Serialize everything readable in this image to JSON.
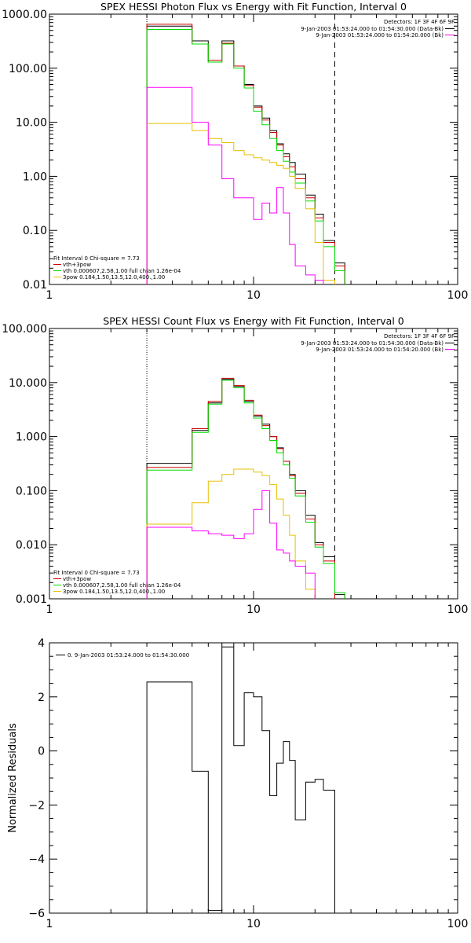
{
  "chart_data": [
    {
      "type": "line",
      "title": "SPEX HESSI Photon Flux vs Energy with Fit Function, Interval 0",
      "xlabel": "",
      "ylabel": "",
      "x_scale": "log",
      "y_scale": "log",
      "xlim": [
        1,
        100
      ],
      "ylim": [
        0.01,
        1000
      ],
      "x_tick_labels": [
        "1",
        "10",
        "100"
      ],
      "y_tick_labels": [
        "1000.00",
        "100.00",
        "10.00",
        "1.00",
        "0.10",
        "0.01"
      ],
      "dotted_vline_x": 3,
      "dashed_vline_x": 25,
      "legend_top": {
        "placement": "top-right",
        "header": "Detectors: 1F 3F 4F 6F 9F",
        "entries": [
          {
            "text": "9-Jan-2003 01:53:24.000 to 01:54:30.000 (Data-Bk)",
            "color": "#000000"
          },
          {
            "text": "9-Jan-2003 01:53:24.000 to 01:54:20.000 (Bk)",
            "color": "#ff00ff"
          }
        ]
      },
      "legend_bottom": {
        "placement": "bottom-left",
        "header": "Fit Interval 0   Chi-square = 7.73",
        "entries": [
          {
            "text": "vth+3pow",
            "color": "#cc0000"
          },
          {
            "text": "vth 0.000607,2.58,1.00  full chian 1.26e-04",
            "color": "#00dd00"
          },
          {
            "text": "3pow 0.184,1.50,13.5,12.0,400.,1.00",
            "color": "#e8c000"
          }
        ]
      },
      "bin_edges": [
        3.0,
        4.0,
        5.0,
        6.0,
        7.0,
        8.0,
        9.0,
        10.0,
        11.0,
        12.0,
        13.0,
        14.0,
        15.0,
        16.0,
        18.0,
        20.0,
        22.0,
        25.0,
        28.0
      ],
      "series": [
        {
          "name": "Data-Bk",
          "color": "#000000",
          "values": [
            600,
            600,
            320,
            130,
            320,
            110,
            50,
            20,
            12,
            7,
            4,
            2.6,
            1.8,
            1.1,
            0.45,
            0.2,
            0.065,
            0.025,
            0.011
          ]
        },
        {
          "name": "vth+3pow",
          "color": "#cc0000",
          "values": [
            650,
            650,
            280,
            140,
            290,
            110,
            48,
            19,
            11,
            6.5,
            3.8,
            2.3,
            1.5,
            0.9,
            0.4,
            0.17,
            0.06,
            0.022
          ]
        },
        {
          "name": "vth",
          "color": "#00dd00",
          "values": [
            520,
            520,
            280,
            130,
            280,
            100,
            43,
            16,
            9,
            5,
            3,
            1.9,
            1.2,
            0.75,
            0.35,
            0.15,
            0.05,
            0.018
          ]
        },
        {
          "name": "3pow",
          "color": "#e8c000",
          "values": [
            9.5,
            9.5,
            7,
            5,
            4.2,
            3,
            2.5,
            2.2,
            2,
            1.8,
            1.6,
            1.4,
            1,
            0.6,
            0.25,
            0.06,
            0.012
          ]
        },
        {
          "name": "Bk",
          "color": "#ff00ff",
          "values": [
            44,
            44,
            10,
            3.8,
            0.9,
            0.4,
            0.4,
            0.16,
            0.32,
            0.21,
            0.62,
            0.21,
            0.055,
            0.022,
            0.015,
            0.012
          ]
        }
      ]
    },
    {
      "type": "line",
      "title": "SPEX HESSI Count Flux vs Energy with Fit Function, Interval 0",
      "xlabel": "",
      "ylabel": "",
      "x_scale": "log",
      "y_scale": "log",
      "xlim": [
        1,
        100
      ],
      "ylim": [
        0.001,
        100
      ],
      "x_tick_labels": [
        "1",
        "10",
        "100"
      ],
      "y_tick_labels": [
        "100.000",
        "10.000",
        "1.000",
        "0.100",
        "0.010",
        "0.001"
      ],
      "dotted_vline_x": 3,
      "dashed_vline_x": 25,
      "legend_top": {
        "placement": "top-right",
        "header": "Detectors: 1F 3F 4F 6F 9F",
        "entries": [
          {
            "text": "9-Jan-2003 01:53:24.000 to 01:54:30.000 (Data-Bk)",
            "color": "#000000"
          },
          {
            "text": "9-Jan-2003 01:53:24.000 to 01:54:20.000 (Bk)",
            "color": "#ff00ff"
          }
        ]
      },
      "legend_bottom": {
        "placement": "bottom-left",
        "header": "Fit Interval 0   Chi-square = 7.73",
        "entries": [
          {
            "text": "vth+3pow",
            "color": "#cc0000"
          },
          {
            "text": "vth 0.000607,2.58,1.00  full chian 1.26e-04",
            "color": "#00dd00"
          },
          {
            "text": "3pow 0.184,1.50,13.5,12.0,400.,1.00",
            "color": "#e8c000"
          }
        ]
      },
      "bin_edges": [
        3.0,
        4.0,
        5.0,
        6.0,
        7.0,
        8.0,
        9.0,
        10.0,
        11.0,
        12.0,
        13.0,
        14.0,
        15.0,
        16.0,
        18.0,
        20.0,
        22.0,
        25.0,
        28.0
      ],
      "series": [
        {
          "name": "Data-Bk",
          "color": "#000000",
          "values": [
            0.32,
            0.32,
            1.3,
            4.2,
            11.5,
            8.5,
            4.5,
            2.4,
            1.7,
            1,
            0.62,
            0.35,
            0.2,
            0.1,
            0.035,
            0.011,
            0.006,
            0.0012
          ]
        },
        {
          "name": "vth+3pow",
          "color": "#cc0000",
          "values": [
            0.27,
            0.27,
            1.4,
            4.5,
            12,
            8.8,
            4.7,
            2.5,
            1.6,
            1,
            0.6,
            0.35,
            0.19,
            0.09,
            0.03,
            0.01,
            0.005
          ]
        },
        {
          "name": "vth",
          "color": "#00dd00",
          "values": [
            0.24,
            0.24,
            1.2,
            4,
            11,
            8,
            4.2,
            2.2,
            1.4,
            0.85,
            0.5,
            0.3,
            0.17,
            0.08,
            0.026,
            0.009,
            0.0045,
            0.0013
          ]
        },
        {
          "name": "3pow",
          "color": "#e8c000",
          "values": [
            0.024,
            0.024,
            0.06,
            0.15,
            0.2,
            0.25,
            0.25,
            0.22,
            0.19,
            0.13,
            0.07,
            0.035,
            0.015,
            0.005,
            0.0015
          ]
        },
        {
          "name": "Bk",
          "color": "#ff00ff",
          "values": [
            0.021,
            0.021,
            0.018,
            0.016,
            0.015,
            0.013,
            0.016,
            0.045,
            0.1,
            0.025,
            0.008,
            0.007,
            0.005,
            0.004,
            0.003
          ]
        }
      ]
    },
    {
      "type": "line",
      "title": "",
      "xlabel": "",
      "ylabel": "Normalized Residuals",
      "x_scale": "log",
      "y_scale": "linear",
      "xlim": [
        1,
        100
      ],
      "ylim": [
        -6,
        4
      ],
      "x_tick_labels": [
        "1",
        "10",
        "100"
      ],
      "y_tick_labels": [
        "4",
        "2",
        "0",
        "−2",
        "−4",
        "−6"
      ],
      "legend": {
        "placement": "top-left",
        "entries": [
          {
            "text": "0.  9-Jan-2003 01:53:24.000 to 01:54:30.000",
            "color": "#000000"
          }
        ]
      },
      "bin_edges": [
        3.0,
        4.0,
        5.0,
        6.0,
        7.0,
        8.0,
        9.0,
        10.0,
        11.0,
        12.0,
        13.0,
        14.0,
        15.0,
        16.0,
        18.0,
        20.0,
        22.0,
        25.0
      ],
      "series": [
        {
          "name": "0.",
          "color": "#000000",
          "values": [
            2.55,
            2.55,
            -0.75,
            -5.9,
            3.85,
            0.2,
            2.15,
            2.0,
            0.75,
            -1.65,
            -0.45,
            0.35,
            -0.35,
            -2.55,
            -1.15,
            -1.05,
            -1.45
          ]
        }
      ]
    }
  ]
}
